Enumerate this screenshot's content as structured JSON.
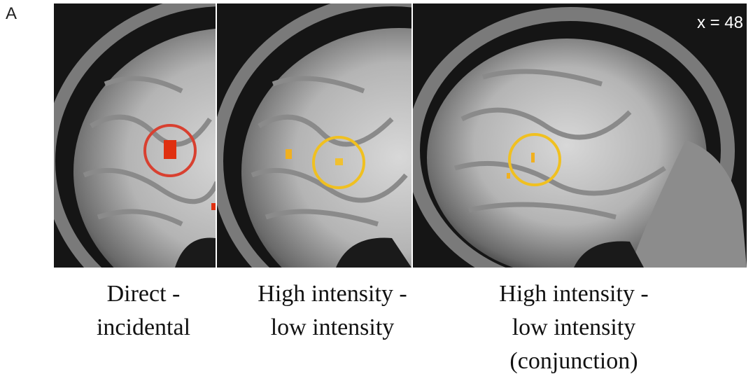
{
  "panel_label": "A",
  "slice_label": "x = 48",
  "panels": [
    {
      "caption_lines": [
        "Direct -",
        "incidental"
      ]
    },
    {
      "caption_lines": [
        "High intensity -",
        "low intensity"
      ]
    },
    {
      "caption_lines": [
        "High intensity -",
        "low intensity",
        "(conjunction)"
      ]
    }
  ]
}
